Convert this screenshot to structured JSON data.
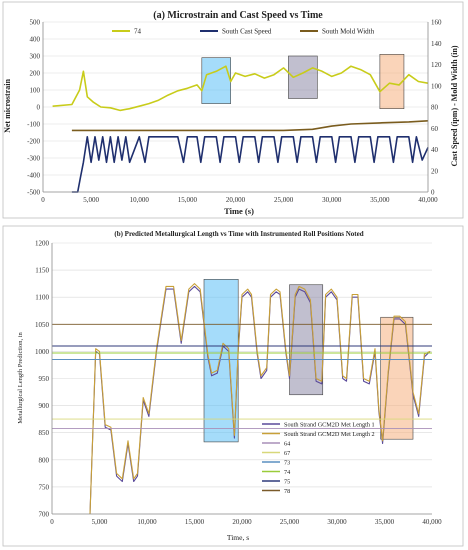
{
  "chart_data": [
    {
      "type": "line",
      "title": "(a) Microstrain and Cast Speed  vs Time",
      "xlabel": "Time (s)",
      "ylabel": "Net microstrain",
      "ylabel_right": "Cast Speed (ipm) - Mold Width (in)",
      "xlim": [
        0,
        40000
      ],
      "ylim": [
        -500,
        500
      ],
      "ylim_right": [
        0,
        160
      ],
      "x_ticks": [
        "0",
        "5,000",
        "10,000",
        "15,000",
        "20,000",
        "25,000",
        "30,000",
        "35,000",
        "40,000"
      ],
      "y_ticks": [
        "500",
        "400",
        "300",
        "200",
        "100",
        "0",
        "-100",
        "-200",
        "-300",
        "-400",
        "-500"
      ],
      "y_ticks_right": [
        "160",
        "140",
        "120",
        "100",
        "80",
        "60",
        "40",
        "20",
        "0"
      ],
      "legend_position": "top",
      "series": [
        {
          "name": "74",
          "axis": "left",
          "color": "#c8cc1a",
          "x": [
            1000,
            3000,
            3800,
            4200,
            4600,
            5200,
            6000,
            7000,
            8000,
            9000,
            10000,
            11000,
            12000,
            13000,
            14000,
            15000,
            16000,
            16500,
            17000,
            18000,
            19000,
            19500,
            20000,
            21000,
            22000,
            23000,
            24000,
            25000,
            26000,
            27000,
            28000,
            29000,
            30000,
            31000,
            32000,
            33000,
            34000,
            35000,
            36000,
            37000,
            38000,
            39000,
            40000
          ],
          "y": [
            5,
            15,
            100,
            210,
            60,
            30,
            0,
            -5,
            -20,
            -10,
            5,
            20,
            40,
            70,
            95,
            110,
            130,
            95,
            190,
            210,
            240,
            150,
            200,
            180,
            195,
            170,
            190,
            230,
            175,
            200,
            230,
            210,
            180,
            200,
            240,
            220,
            190,
            90,
            140,
            130,
            190,
            150,
            140
          ]
        },
        {
          "name": "South Cast Speed",
          "axis": "right",
          "color": "#1f2f6e",
          "x": [
            3000,
            3600,
            3900,
            4200,
            4600,
            5000,
            5400,
            5800,
            6200,
            6600,
            7000,
            7400,
            7800,
            8200,
            8600,
            9000,
            10000,
            10600,
            11000,
            12000,
            13000,
            14000,
            14600,
            15000,
            16000,
            16400,
            16800,
            18000,
            18400,
            18800,
            20000,
            20400,
            20800,
            22000,
            22400,
            22800,
            23500,
            24000,
            24400,
            24800,
            26000,
            26400,
            26800,
            28000,
            28400,
            28800,
            30000,
            30400,
            30800,
            32000,
            32400,
            32800,
            34000,
            34400,
            34800,
            36000,
            36400,
            36800,
            38000,
            38400,
            38800,
            39400,
            40000
          ],
          "y": [
            0,
            0,
            14,
            28,
            52,
            28,
            52,
            30,
            52,
            28,
            52,
            28,
            52,
            30,
            52,
            28,
            52,
            28,
            52,
            52,
            52,
            52,
            28,
            52,
            52,
            28,
            52,
            52,
            28,
            52,
            52,
            28,
            52,
            52,
            28,
            52,
            52,
            52,
            28,
            52,
            52,
            28,
            52,
            52,
            28,
            52,
            52,
            28,
            52,
            52,
            28,
            52,
            52,
            28,
            52,
            52,
            28,
            52,
            52,
            28,
            52,
            30,
            42
          ]
        },
        {
          "name": "South Mold Width",
          "axis": "right",
          "color": "#7a5c1e",
          "x": [
            3000,
            10000,
            20000,
            25000,
            28000,
            30000,
            32000,
            35000,
            38000,
            40000
          ],
          "y": [
            58,
            58,
            58,
            58,
            59,
            62,
            64,
            65,
            66,
            67
          ]
        }
      ],
      "highlights": [
        {
          "x_start": 16500,
          "x_end": 19500,
          "y_start": 20,
          "y_end": 290,
          "color": "#5bc0f5"
        },
        {
          "x_start": 25500,
          "x_end": 28500,
          "y_start": 50,
          "y_end": 300,
          "color": "#8e8aa8"
        },
        {
          "x_start": 35000,
          "x_end": 37500,
          "y_start": -10,
          "y_end": 310,
          "color": "#f5b080"
        }
      ]
    },
    {
      "type": "line",
      "title": "(b) Predicted Metallurgical Length vs Time with Instrumented Roll Positions Noted",
      "xlabel": "Time, s",
      "ylabel": "Metallurgical Length Prediction, in",
      "xlim": [
        0,
        40000
      ],
      "ylim": [
        700,
        1200
      ],
      "x_ticks": [
        "0",
        "5,000",
        "10,000",
        "15,000",
        "20,000",
        "25,000",
        "30,000",
        "35,000",
        "40,000"
      ],
      "y_ticks": [
        "1200",
        "1150",
        "1100",
        "1050",
        "1000",
        "950",
        "900",
        "850",
        "800",
        "750",
        "700"
      ],
      "legend_position": "bottom-right",
      "series": [
        {
          "name": "South Strand GCM2D Met Length 1",
          "color": "#5a4a9a",
          "x": [
            4000,
            4600,
            5000,
            5600,
            6200,
            6800,
            7400,
            8000,
            8600,
            9000,
            9600,
            10200,
            11000,
            12000,
            12800,
            13600,
            14400,
            15000,
            15600,
            16400,
            16800,
            17400,
            18000,
            18600,
            19200,
            19600,
            20000,
            20600,
            21000,
            21600,
            22000,
            22600,
            23000,
            23600,
            24000,
            24600,
            25000,
            25600,
            26000,
            26600,
            27200,
            27800,
            28400,
            28800,
            29400,
            30000,
            30600,
            31000,
            31600,
            32200,
            32800,
            33400,
            34000,
            34400,
            34800,
            35400,
            36000,
            36600,
            37200,
            38000,
            38600,
            39200,
            39800
          ],
          "y": [
            700,
            1000,
            995,
            860,
            855,
            770,
            760,
            830,
            760,
            770,
            910,
            880,
            1000,
            1115,
            1115,
            1015,
            1110,
            1120,
            1110,
            990,
            955,
            960,
            1010,
            1000,
            840,
            1000,
            1100,
            1110,
            1100,
            995,
            950,
            965,
            1100,
            1110,
            1105,
            1000,
            950,
            1100,
            1115,
            1110,
            1090,
            945,
            940,
            1100,
            1110,
            1095,
            950,
            945,
            1100,
            1100,
            945,
            940,
            1000,
            890,
            830,
            960,
            1060,
            1060,
            1050,
            920,
            880,
            990,
            1000
          ]
        },
        {
          "name": "South Strand GCM2D Met Length 2",
          "color": "#c8a038",
          "x": [
            4000,
            4600,
            5000,
            5600,
            6200,
            6800,
            7400,
            8000,
            8600,
            9000,
            9600,
            10200,
            11000,
            12000,
            12800,
            13600,
            14400,
            15000,
            15600,
            16400,
            16800,
            17400,
            18000,
            18600,
            19200,
            19600,
            20000,
            20600,
            21000,
            21600,
            22000,
            22600,
            23000,
            23600,
            24000,
            24600,
            25000,
            25600,
            26000,
            26600,
            27200,
            27800,
            28400,
            28800,
            29400,
            30000,
            30600,
            31000,
            31600,
            32200,
            32800,
            33400,
            34000,
            34400,
            34800,
            35400,
            36000,
            36600,
            37200,
            38000,
            38600,
            39200,
            39800
          ],
          "y": [
            700,
            1005,
            1000,
            865,
            860,
            775,
            765,
            835,
            765,
            775,
            915,
            885,
            1005,
            1120,
            1120,
            1020,
            1115,
            1125,
            1115,
            995,
            960,
            965,
            1015,
            1005,
            845,
            1005,
            1105,
            1115,
            1105,
            1000,
            955,
            970,
            1105,
            1115,
            1110,
            1005,
            955,
            1105,
            1120,
            1115,
            1095,
            950,
            945,
            1105,
            1115,
            1100,
            955,
            950,
            1105,
            1105,
            950,
            945,
            1005,
            895,
            835,
            965,
            1065,
            1065,
            1055,
            925,
            885,
            995,
            1000
          ]
        },
        {
          "name": "64",
          "color": "#a88fb8",
          "x": [
            0,
            40000
          ],
          "y": [
            858,
            858
          ]
        },
        {
          "name": "67",
          "color": "#d8d87a",
          "x": [
            0,
            40000
          ],
          "y": [
            875,
            875
          ]
        },
        {
          "name": "73",
          "color": "#5a8fc0",
          "x": [
            0,
            40000
          ],
          "y": [
            985,
            985
          ]
        },
        {
          "name": "74",
          "color": "#9acc3a",
          "x": [
            0,
            40000
          ],
          "y": [
            997,
            997
          ]
        },
        {
          "name": "75",
          "color": "#2f3a7a",
          "x": [
            0,
            40000
          ],
          "y": [
            1010,
            1010
          ]
        },
        {
          "name": "78",
          "color": "#7a5a2a",
          "x": [
            0,
            40000
          ],
          "y": [
            1050,
            1050
          ]
        }
      ],
      "highlights": [
        {
          "x_start": 16000,
          "x_end": 19600,
          "y_start": 833,
          "y_end": 1133,
          "color": "#5bc0f5"
        },
        {
          "x_start": 25000,
          "x_end": 28500,
          "y_start": 920,
          "y_end": 1123,
          "color": "#8e8aa8"
        },
        {
          "x_start": 34600,
          "x_end": 38000,
          "y_start": 838,
          "y_end": 1063,
          "color": "#f5b080"
        }
      ]
    }
  ]
}
